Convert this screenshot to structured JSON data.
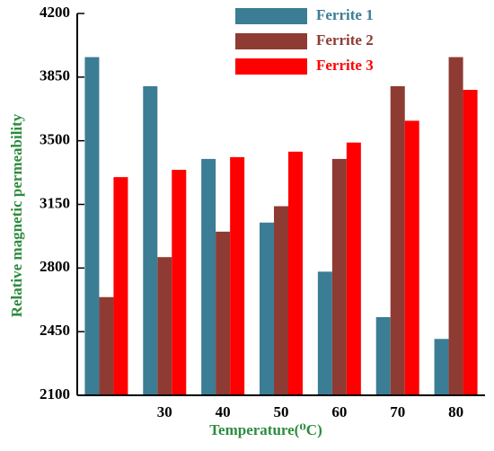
{
  "chart_data": {
    "type": "bar",
    "xlabel": "Temperature(⁰C)",
    "ylabel": "Relative magnetic permeability",
    "categories": [
      null,
      "30",
      "40",
      "50",
      "60",
      "70",
      "80"
    ],
    "series": [
      {
        "name": "Ferrite 1",
        "color": "#3b7d95",
        "values": [
          3960,
          3800,
          3400,
          3050,
          2780,
          2530,
          2410
        ]
      },
      {
        "name": "Ferrite 2",
        "color": "#8e3b33",
        "values": [
          2640,
          2860,
          3000,
          3140,
          3400,
          3800,
          3960
        ]
      },
      {
        "name": "Ferrite 3",
        "color": "#ff0000",
        "values": [
          3300,
          3340,
          3410,
          3440,
          3490,
          3610,
          3780
        ]
      }
    ],
    "ylim": [
      2100,
      4200
    ],
    "yticks": [
      2100,
      2450,
      2800,
      3150,
      3500,
      3850,
      4200
    ],
    "legend": "top-right"
  }
}
